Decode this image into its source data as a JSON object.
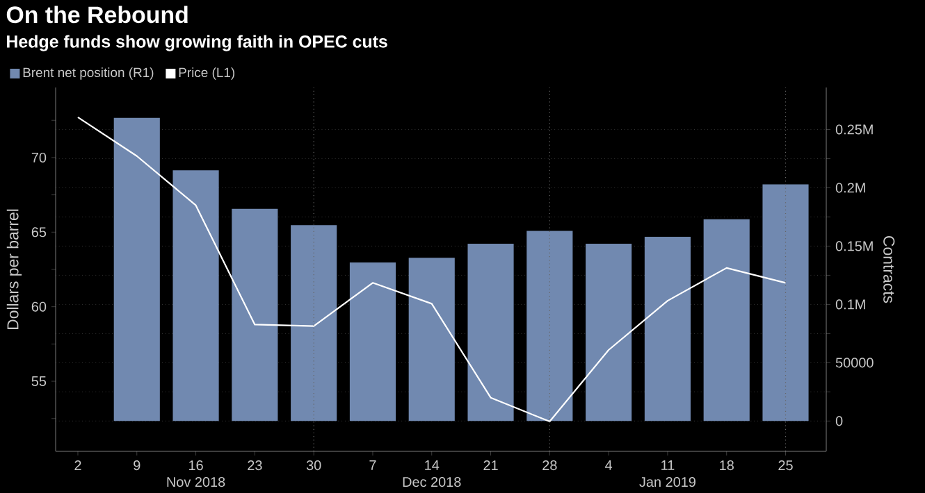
{
  "chart_data": {
    "type": "bar",
    "title": "On the Rebound",
    "subtitle": "Hedge funds show growing faith in OPEC cuts",
    "ylabel": "Dollars per barrel",
    "y2label": "Contracts",
    "categories": [
      "2",
      "9",
      "16",
      "23",
      "30",
      "7",
      "14",
      "21",
      "28",
      "4",
      "11",
      "18",
      "25"
    ],
    "series": [
      {
        "name": "Brent net position (R1)",
        "axis": "y2",
        "color": "#7189b0",
        "values": [
          null,
          260000,
          215000,
          182000,
          168000,
          136000,
          140000,
          152000,
          163000,
          152000,
          158000,
          173000,
          203000
        ]
      },
      {
        "name": "Price (L1)",
        "type": "line",
        "axis": "y",
        "color": "#ffffff",
        "values": [
          72.7,
          70.1,
          66.8,
          58.8,
          58.7,
          61.6,
          60.2,
          53.9,
          52.3,
          57.1,
          60.4,
          62.6,
          61.6
        ]
      }
    ],
    "ylim": [
      50.3,
      74.7
    ],
    "yticks": [
      {
        "value": 52.5,
        "label": null
      },
      55,
      {
        "value": 57.5,
        "label": null
      },
      60,
      {
        "value": 62.5,
        "label": null
      },
      65,
      {
        "value": 67.5,
        "label": null
      },
      70,
      {
        "value": 72.5,
        "label": null
      }
    ],
    "y2lim": [
      -26000,
      286000
    ],
    "y2ticks": [
      0,
      {
        "value": 25000,
        "label": null
      },
      50000,
      {
        "value": 75000,
        "label": null
      },
      {
        "value": 100000,
        "label": "0.1M"
      },
      {
        "value": 125000,
        "label": null
      },
      {
        "value": 150000,
        "label": "0.15M"
      },
      {
        "value": 175000,
        "label": null
      },
      {
        "value": 200000,
        "label": "0.2M"
      },
      {
        "value": 225000,
        "label": null
      },
      {
        "value": 250000,
        "label": "0.25M"
      }
    ],
    "grid": "y2",
    "legend": "top left",
    "ref_lines": [
      {
        "axis": "x",
        "value": "30",
        "color": "#666666",
        "line_style": "dotted"
      },
      {
        "axis": "x",
        "value": "28",
        "color": "#666666",
        "line_style": "dotted"
      },
      {
        "axis": "x",
        "value": "25",
        "color": "#666666",
        "line_style": "dotted"
      }
    ],
    "annotations": [
      "Nov 2018",
      "Dec 2018",
      "Jan 2019"
    ]
  }
}
